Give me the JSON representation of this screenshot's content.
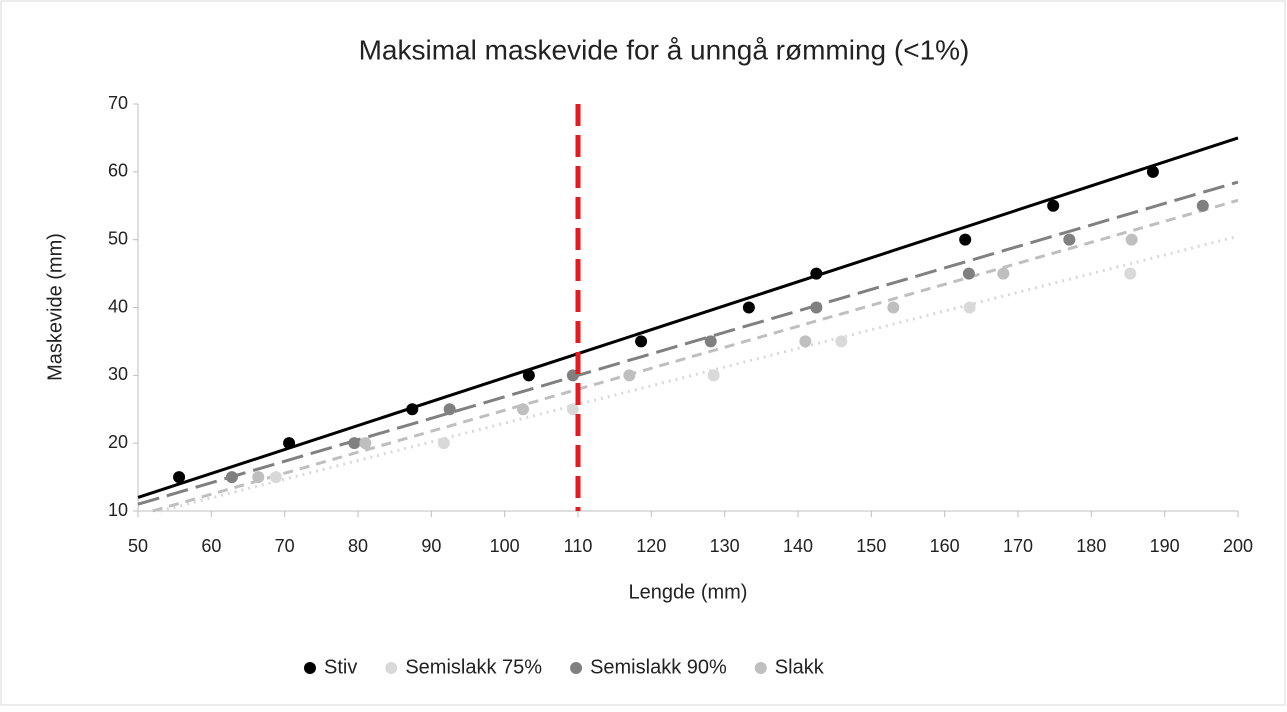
{
  "chart_data": {
    "type": "scatter",
    "title": "Maksimal maskevide for å unngå rømming (<1%)",
    "x_label": "Lengde (mm)",
    "y_label": "Maskevide (mm)",
    "xlim": [
      50,
      200
    ],
    "xticks": [
      50,
      60,
      70,
      80,
      90,
      100,
      110,
      120,
      130,
      140,
      150,
      160,
      170,
      180,
      190,
      200
    ],
    "ylim": [
      10,
      70
    ],
    "yticks": [
      10,
      20,
      30,
      40,
      50,
      60,
      70
    ],
    "grid": false,
    "legend": "bottom",
    "vline": {
      "x": 110,
      "color": "#e41a1c"
    },
    "series": [
      {
        "name": "Stiv",
        "color": "#000000",
        "line_style": "solid",
        "x": [
          55.6,
          70.6,
          87.4,
          103.3,
          118.6,
          133.3,
          142.5,
          162.8,
          174.8,
          188.4
        ],
        "values": [
          15,
          20,
          25,
          30,
          35,
          40,
          45,
          50,
          55,
          60
        ],
        "trend": {
          "x": [
            50,
            200
          ],
          "y": [
            12,
            65
          ]
        }
      },
      {
        "name": "Semislakk 75%",
        "color": "#d9d9d9",
        "line_style": "dot",
        "x": [
          68.8,
          91.7,
          109.3,
          128.5,
          145.9,
          163.4,
          185.3
        ],
        "values": [
          15,
          20,
          25,
          30,
          35,
          40,
          45
        ],
        "trend": {
          "x": [
            53,
            200
          ],
          "y": [
            10,
            50.5
          ]
        }
      },
      {
        "name": "Semislakk 90%",
        "color": "#808080",
        "line_style": "long-dash",
        "x": [
          62.8,
          79.5,
          92.5,
          109.3,
          128.1,
          142.5,
          163.3,
          177,
          195.2
        ],
        "values": [
          15,
          20,
          25,
          30,
          35,
          40,
          45,
          50,
          55
        ],
        "trend": {
          "x": [
            50,
            200
          ],
          "y": [
            11,
            58.5
          ]
        }
      },
      {
        "name": "Slakk",
        "color": "#bfbfbf",
        "line_style": "dash",
        "x": [
          66.4,
          81,
          102.5,
          117,
          141,
          153,
          168,
          185.5
        ],
        "values": [
          15,
          20,
          25,
          30,
          35,
          40,
          45,
          50
        ],
        "trend": {
          "x": [
            52,
            200
          ],
          "y": [
            10,
            55.8
          ]
        }
      }
    ]
  }
}
